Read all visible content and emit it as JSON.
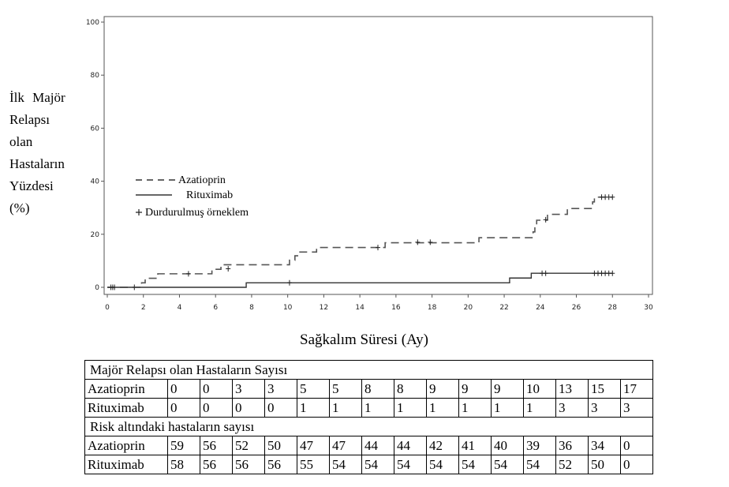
{
  "chart_data": {
    "type": "line",
    "title": "",
    "ylabel": [
      "İlk Majör",
      "Relapsı",
      "olan",
      "Hastaların",
      "Yüzdesi",
      "(%)"
    ],
    "xlabel": "Sağkalım Süresi (Ay)",
    "xlim": [
      0,
      30
    ],
    "ylim": [
      0,
      100
    ],
    "xticks": [
      0,
      2,
      4,
      6,
      8,
      10,
      12,
      14,
      16,
      18,
      20,
      22,
      24,
      26,
      28,
      30
    ],
    "yticks": [
      0,
      20,
      40,
      60,
      80,
      100
    ],
    "grid": false,
    "legend_position": "left",
    "legend": [
      {
        "label": "Azatioprin",
        "marker": "dashed-line"
      },
      {
        "label": "Rituximab",
        "marker": "solid-line"
      },
      {
        "label": "Durdurulmuş örneklem",
        "marker": "+"
      }
    ],
    "series": [
      {
        "name": "Azatioprin",
        "style": "dashed",
        "steps": [
          [
            0,
            0
          ],
          [
            1.9,
            1.7
          ],
          [
            2.1,
            3.4
          ],
          [
            2.8,
            5.1
          ],
          [
            5.8,
            6.8
          ],
          [
            6.3,
            8.5
          ],
          [
            10.1,
            10.2
          ],
          [
            10.4,
            11.9
          ],
          [
            10.6,
            13.3
          ],
          [
            11.6,
            15.0
          ],
          [
            15.4,
            16.8
          ],
          [
            20.6,
            18.7
          ],
          [
            23.6,
            20.9
          ],
          [
            23.7,
            23.1
          ],
          [
            23.8,
            25.3
          ],
          [
            24.4,
            27.5
          ],
          [
            25.5,
            29.7
          ],
          [
            26.9,
            32.2
          ],
          [
            27.0,
            34.0
          ],
          [
            28.0,
            34.0
          ]
        ],
        "censored": [
          [
            0.4,
            0
          ],
          [
            1.5,
            0
          ],
          [
            4.5,
            5.1
          ],
          [
            6.7,
            7.0
          ],
          [
            15.0,
            15.0
          ],
          [
            17.2,
            17.0
          ],
          [
            17.9,
            17.0
          ],
          [
            24.3,
            25.5
          ],
          [
            27.4,
            34.0
          ],
          [
            27.6,
            34.0
          ],
          [
            27.8,
            34.0
          ],
          [
            28.0,
            34.0
          ]
        ]
      },
      {
        "name": "Rituximab",
        "style": "solid",
        "steps": [
          [
            0,
            0
          ],
          [
            7.7,
            1.7
          ],
          [
            22.3,
            3.5
          ],
          [
            23.5,
            5.3
          ],
          [
            28.0,
            5.3
          ]
        ],
        "censored": [
          [
            0.2,
            0
          ],
          [
            0.3,
            0
          ],
          [
            10.1,
            1.7
          ],
          [
            24.1,
            5.3
          ],
          [
            24.3,
            5.3
          ],
          [
            27.0,
            5.3
          ],
          [
            27.2,
            5.3
          ],
          [
            27.4,
            5.3
          ],
          [
            27.6,
            5.3
          ],
          [
            27.8,
            5.3
          ],
          [
            28.0,
            5.3
          ]
        ]
      }
    ]
  },
  "risk_table": {
    "section1_title": "Majör Relapsı olan Hastaların Sayısı",
    "section1_rows": [
      {
        "label": "Azatioprin",
        "values": [
          "0",
          "0",
          "3",
          "3",
          "5",
          "5",
          "8",
          "8",
          "9",
          "9",
          "9",
          "10",
          "13",
          "15",
          "17"
        ]
      },
      {
        "label": "Rituximab",
        "values": [
          "0",
          "0",
          "0",
          "0",
          "1",
          "1",
          "1",
          "1",
          "1",
          "1",
          "1",
          "1",
          "3",
          "3",
          "3"
        ]
      }
    ],
    "section2_title": "Risk altındaki hastaların sayısı",
    "section2_rows": [
      {
        "label": "Azatioprin",
        "values": [
          "59",
          "56",
          "52",
          "50",
          "47",
          "47",
          "44",
          "44",
          "42",
          "41",
          "40",
          "39",
          "36",
          "34",
          "0"
        ]
      },
      {
        "label": "Rituximab",
        "values": [
          "58",
          "56",
          "56",
          "56",
          "55",
          "54",
          "54",
          "54",
          "54",
          "54",
          "54",
          "54",
          "52",
          "50",
          "0"
        ]
      }
    ]
  }
}
